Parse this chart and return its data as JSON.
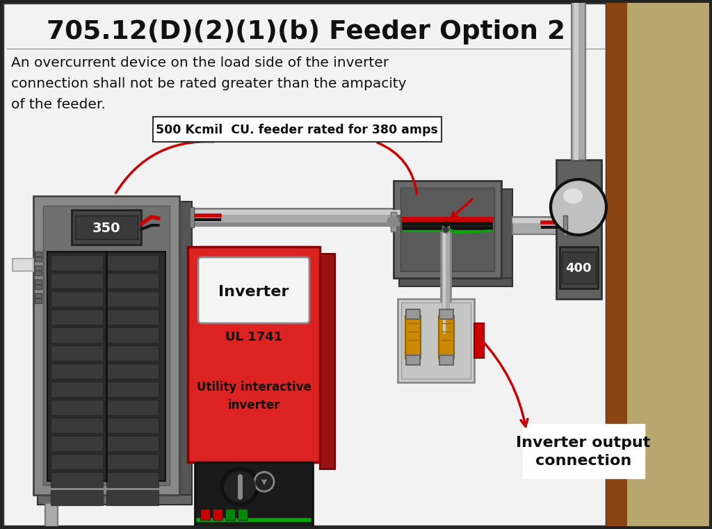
{
  "title": "705.12(D)(2)(1)(b) Feeder Option 2",
  "subtitle_lines": [
    "An overcurrent device on the load side of the inverter",
    "connection shall not be rated greater than the ampacity",
    "of the feeder."
  ],
  "feeder_label": "500 Kcmil  CU. feeder rated for 380 amps",
  "inverter_label1": "Inverter",
  "inverter_label2": "UL 1741",
  "inverter_label3": "Utility interactive\ninverter",
  "breaker_350": "350",
  "breaker_400": "400",
  "annotation": "Inverter output\nconnection",
  "bg_color": "#e8e8e8",
  "main_bg": "#f2f2f2",
  "wall_brown": "#8B4513",
  "wall_tan": "#b8a870",
  "red_color": "#cc0000",
  "green_wire": "#00aa00",
  "panel_gray": "#808080",
  "panel_dark": "#555555",
  "panel_darker": "#3a3a3a",
  "conduit_light": "#b0b0b0",
  "conduit_dark": "#888888",
  "inverter_red": "#dd2222",
  "meter_gray": "#606060",
  "disc_box_white": "#d8d8d8"
}
